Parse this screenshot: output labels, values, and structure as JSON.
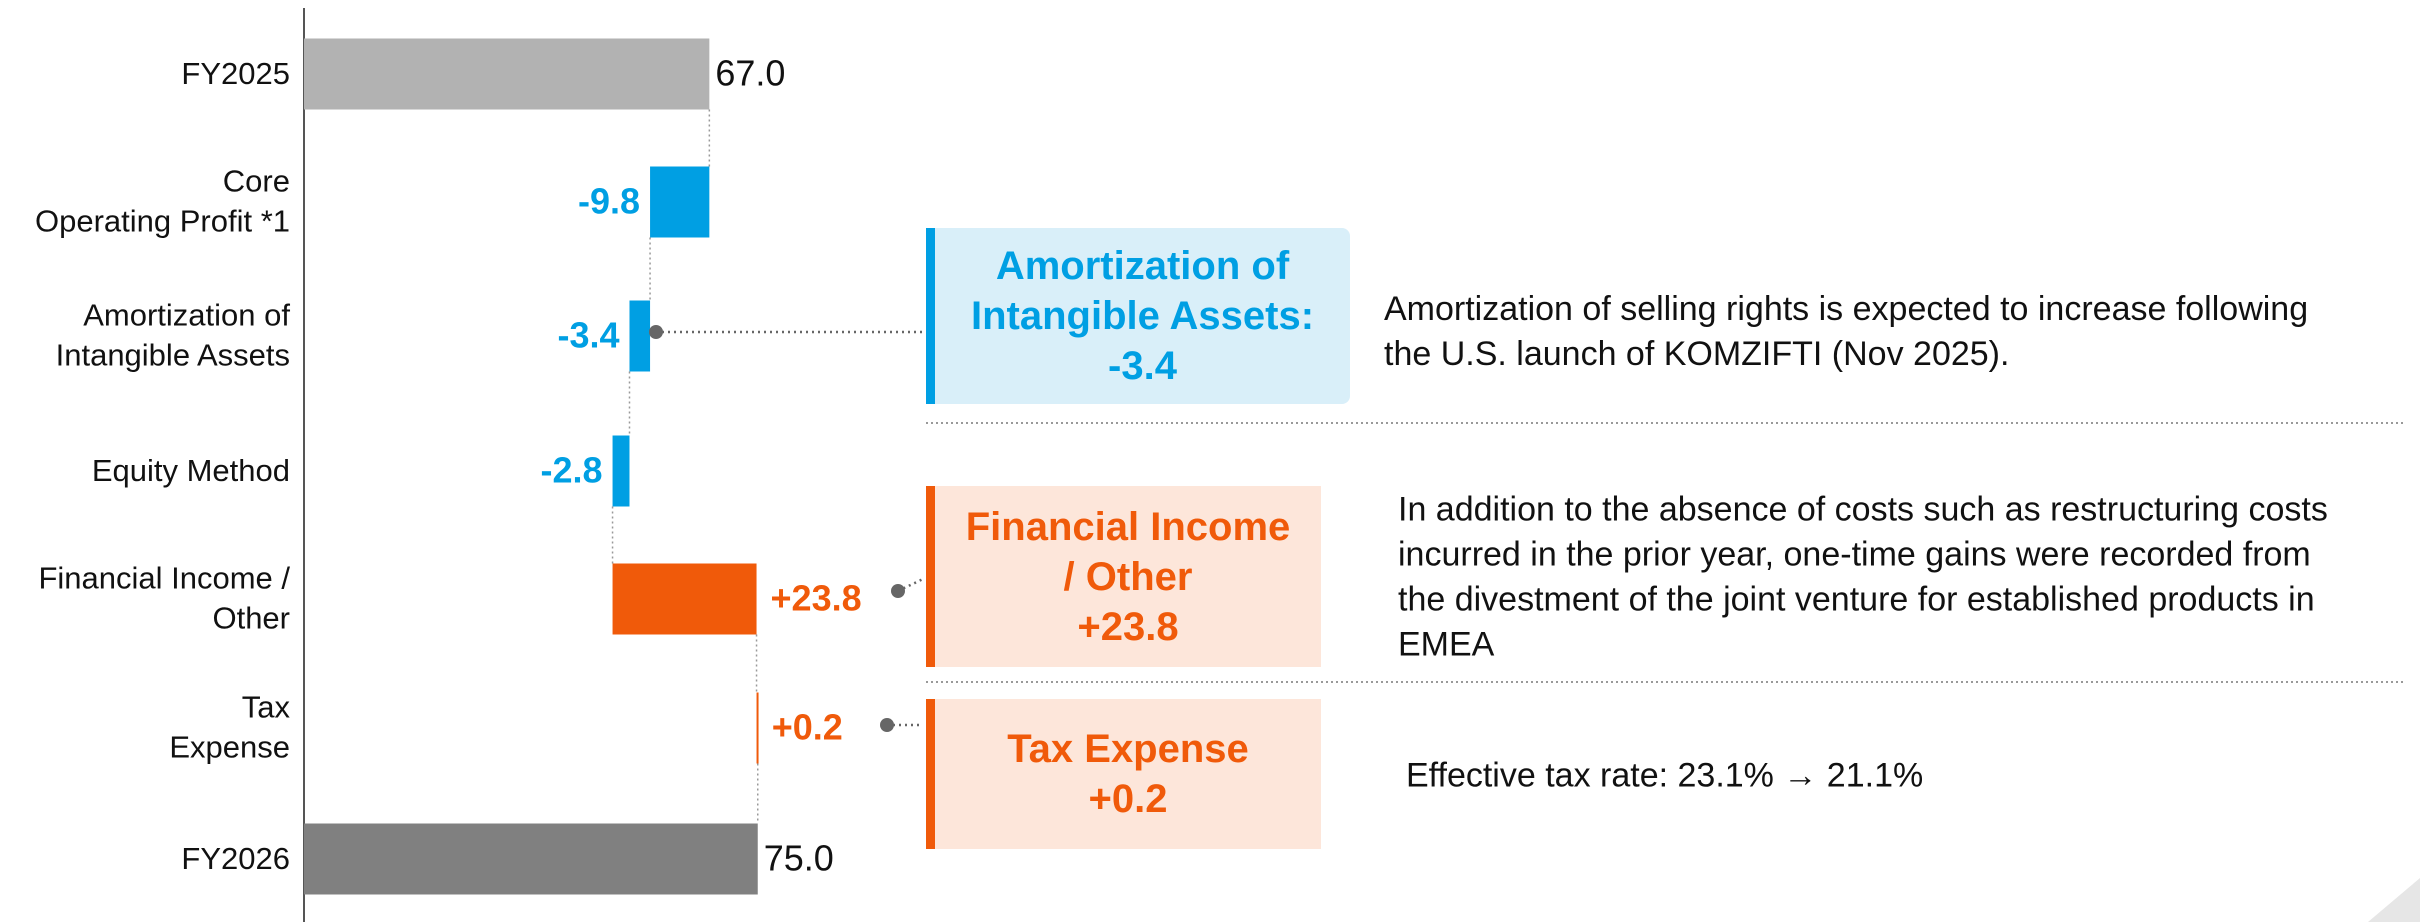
{
  "chart_data": {
    "type": "waterfall",
    "orientation": "horizontal",
    "categories": [
      "FY2025",
      "Core\nOperating Profit *1",
      "Amortization of\nIntangible Assets",
      "Equity Method",
      "Financial Income /\nOther",
      "Tax\nExpense",
      "FY2026"
    ],
    "values": [
      67.0,
      -9.8,
      -3.4,
      -2.8,
      23.8,
      0.2,
      75.0
    ],
    "value_labels": [
      "67.0",
      "-9.8",
      "-3.4",
      "-2.8",
      "+23.8",
      "+0.2",
      "75.0"
    ],
    "colors": [
      "#b2b2b2",
      "#009fe3",
      "#009fe3",
      "#009fe3",
      "#f05a0a",
      "#f05a0a",
      "#808080"
    ],
    "annotations": [
      {
        "title": "Amortization of\nIntangible Assets:\n-3.4",
        "description": "Amortization of selling rights is expected to increase following\nthe U.S. launch of KOMZIFTI (Nov 2025).",
        "color": "#009fe3",
        "background": "#d9eff9"
      },
      {
        "title": "Financial Income\n/ Other\n+23.8",
        "description": "In addition to the absence of costs such as restructuring costs\nincurred in the prior year, one-time gains were recorded from\nthe divestment of the joint venture for established products in\nEMEA",
        "color": "#f05a0a",
        "background": "#fde6da"
      },
      {
        "title": "Tax Expense\n+0.2",
        "description": "Effective tax rate: 23.1% → 21.1%",
        "color": "#f05a0a",
        "background": "#fde6da"
      }
    ]
  }
}
